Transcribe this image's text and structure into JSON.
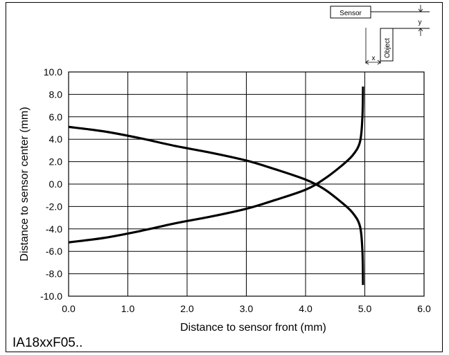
{
  "chart_data": {
    "type": "line",
    "xlabel": "Distance to sensor front (mm)",
    "ylabel": "Distance to sensor center (mm)",
    "xlim": [
      0,
      6
    ],
    "ylim": [
      -10,
      10
    ],
    "x_ticks": [
      "0.0",
      "1.0",
      "2.0",
      "3.0",
      "4.0",
      "5.0",
      "6.0"
    ],
    "y_ticks": [
      "10.0",
      "8.0",
      "6.0",
      "4.0",
      "2.0",
      "0.0",
      "-2.0",
      "-4.0",
      "-6.0",
      "-8.0",
      "-10.0"
    ],
    "grid": true,
    "series": [
      {
        "points": [
          [
            0.0,
            5.1
          ],
          [
            0.6,
            4.7
          ],
          [
            1.2,
            4.1
          ],
          [
            1.8,
            3.4
          ],
          [
            2.4,
            2.8
          ],
          [
            3.0,
            2.1
          ],
          [
            3.5,
            1.3
          ],
          [
            4.0,
            0.4
          ],
          [
            4.3,
            -0.4
          ],
          [
            4.6,
            -1.6
          ],
          [
            4.8,
            -2.6
          ],
          [
            4.92,
            -3.8
          ],
          [
            4.96,
            -6.0
          ],
          [
            4.97,
            -9.0
          ]
        ]
      },
      {
        "points": [
          [
            0.0,
            -5.2
          ],
          [
            0.6,
            -4.8
          ],
          [
            1.2,
            -4.2
          ],
          [
            1.8,
            -3.5
          ],
          [
            2.4,
            -2.9
          ],
          [
            3.0,
            -2.2
          ],
          [
            3.5,
            -1.4
          ],
          [
            4.0,
            -0.5
          ],
          [
            4.3,
            0.4
          ],
          [
            4.6,
            1.6
          ],
          [
            4.8,
            2.6
          ],
          [
            4.92,
            3.8
          ],
          [
            4.96,
            6.0
          ],
          [
            4.97,
            8.7
          ]
        ]
      }
    ]
  },
  "inset": {
    "sensor_label": "Sensor",
    "object_label": "Object",
    "x_label": "x",
    "y_label": "y"
  },
  "footer": {
    "code": "IA18xxF05.."
  }
}
